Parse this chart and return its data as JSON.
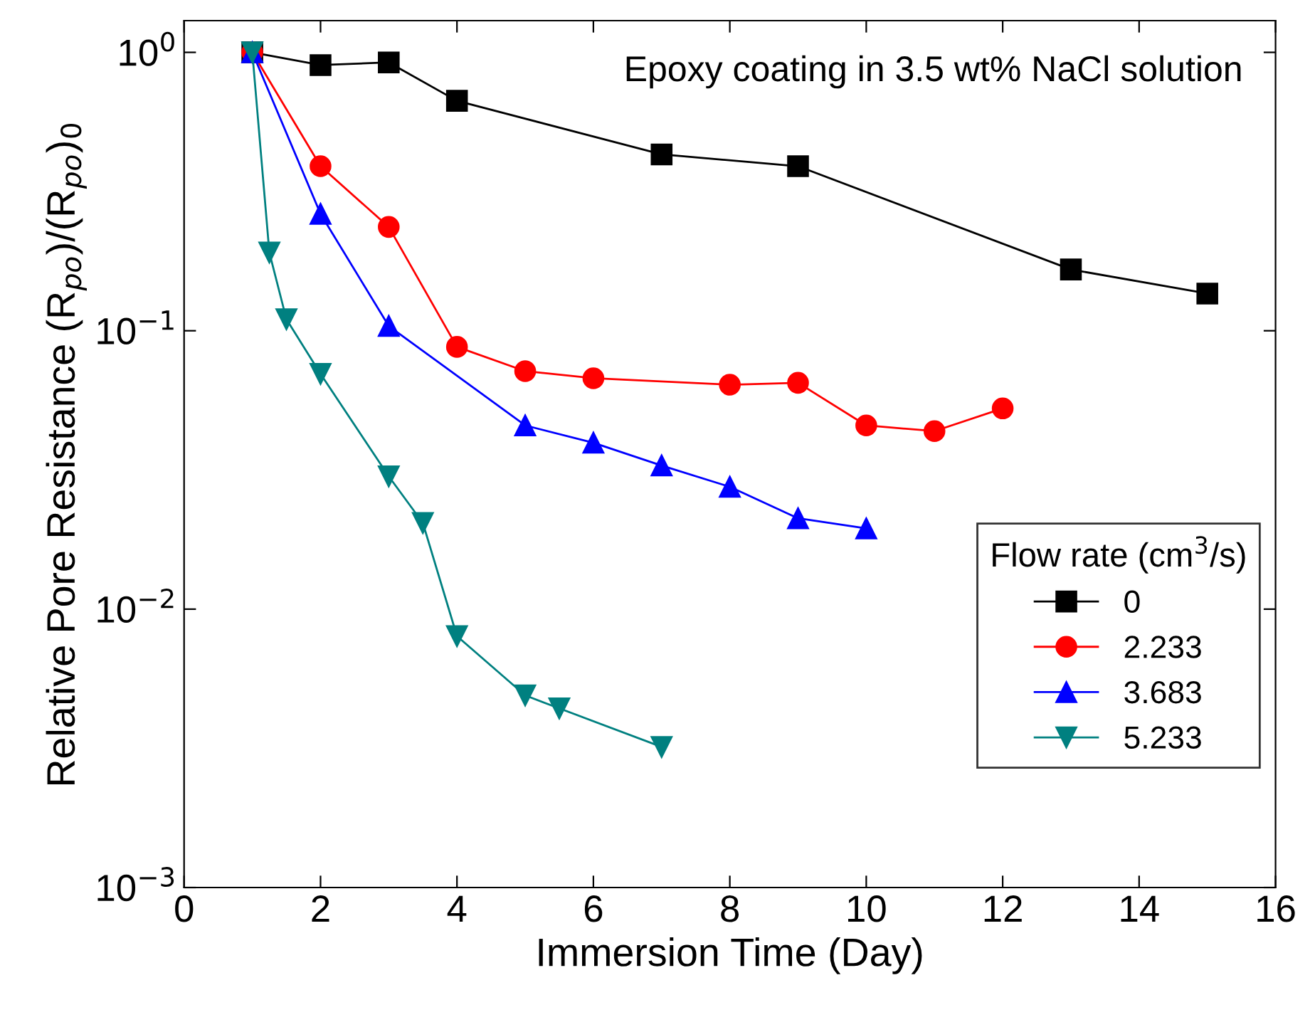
{
  "chart_data": {
    "type": "line",
    "xlabel": "Immersion Time (Day)",
    "ylabel": "Relative Pore Resistance (R$_{po}$)/(R$_{po}$)$_{0}$",
    "legend_title": "Flow rate (cm$^{3}$/s)",
    "annotations": [
      "Epoxy coating in 3.5 wt% NaCl solution"
    ],
    "log": "y",
    "xlim": [
      0,
      16
    ],
    "xticks": [
      0,
      2,
      4,
      6,
      8,
      10,
      12,
      14,
      16
    ],
    "ylim": [
      0.001,
      1.3
    ],
    "yticks": [
      {
        "value": 0.001,
        "label": "10$^{−3}$"
      },
      {
        "value": 0.01,
        "label": "10$^{−2}$"
      },
      {
        "value": 0.1,
        "label": "10$^{−1}$"
      },
      {
        "value": 1,
        "label": "10$^{0}$"
      }
    ],
    "grid": false,
    "legend": "bottom right",
    "series": [
      {
        "name": "0",
        "color": "#000000",
        "marker": "square",
        "x": [
          1,
          2,
          3,
          4,
          7,
          9,
          13,
          15
        ],
        "values": [
          1.0,
          0.9,
          0.92,
          0.67,
          0.43,
          0.39,
          0.166,
          0.136
        ]
      },
      {
        "name": "2.233",
        "color": "#ff0000",
        "marker": "circle",
        "x": [
          1,
          2,
          3,
          4,
          5,
          6,
          8,
          9,
          10,
          11,
          12
        ],
        "values": [
          1.0,
          0.39,
          0.236,
          0.0875,
          0.0716,
          0.0675,
          0.064,
          0.065,
          0.0457,
          0.0436,
          0.0526
        ]
      },
      {
        "name": "3.683",
        "color": "#0000ff",
        "marker": "triangle",
        "x": [
          1,
          2,
          3,
          5,
          6,
          7,
          8,
          9,
          10
        ],
        "values": [
          1.0,
          0.263,
          0.104,
          0.0457,
          0.0396,
          0.0328,
          0.0275,
          0.0212,
          0.0195
        ]
      },
      {
        "name": "5.233",
        "color": "#008080",
        "marker": "triangle_down",
        "x": [
          1,
          1.25,
          1.5,
          2,
          3,
          3.5,
          4,
          5,
          5.5,
          7
        ],
        "values": [
          1.0,
          0.191,
          0.11,
          0.07,
          0.03,
          0.0204,
          0.008,
          0.0049,
          0.0044,
          0.0032
        ]
      }
    ]
  }
}
